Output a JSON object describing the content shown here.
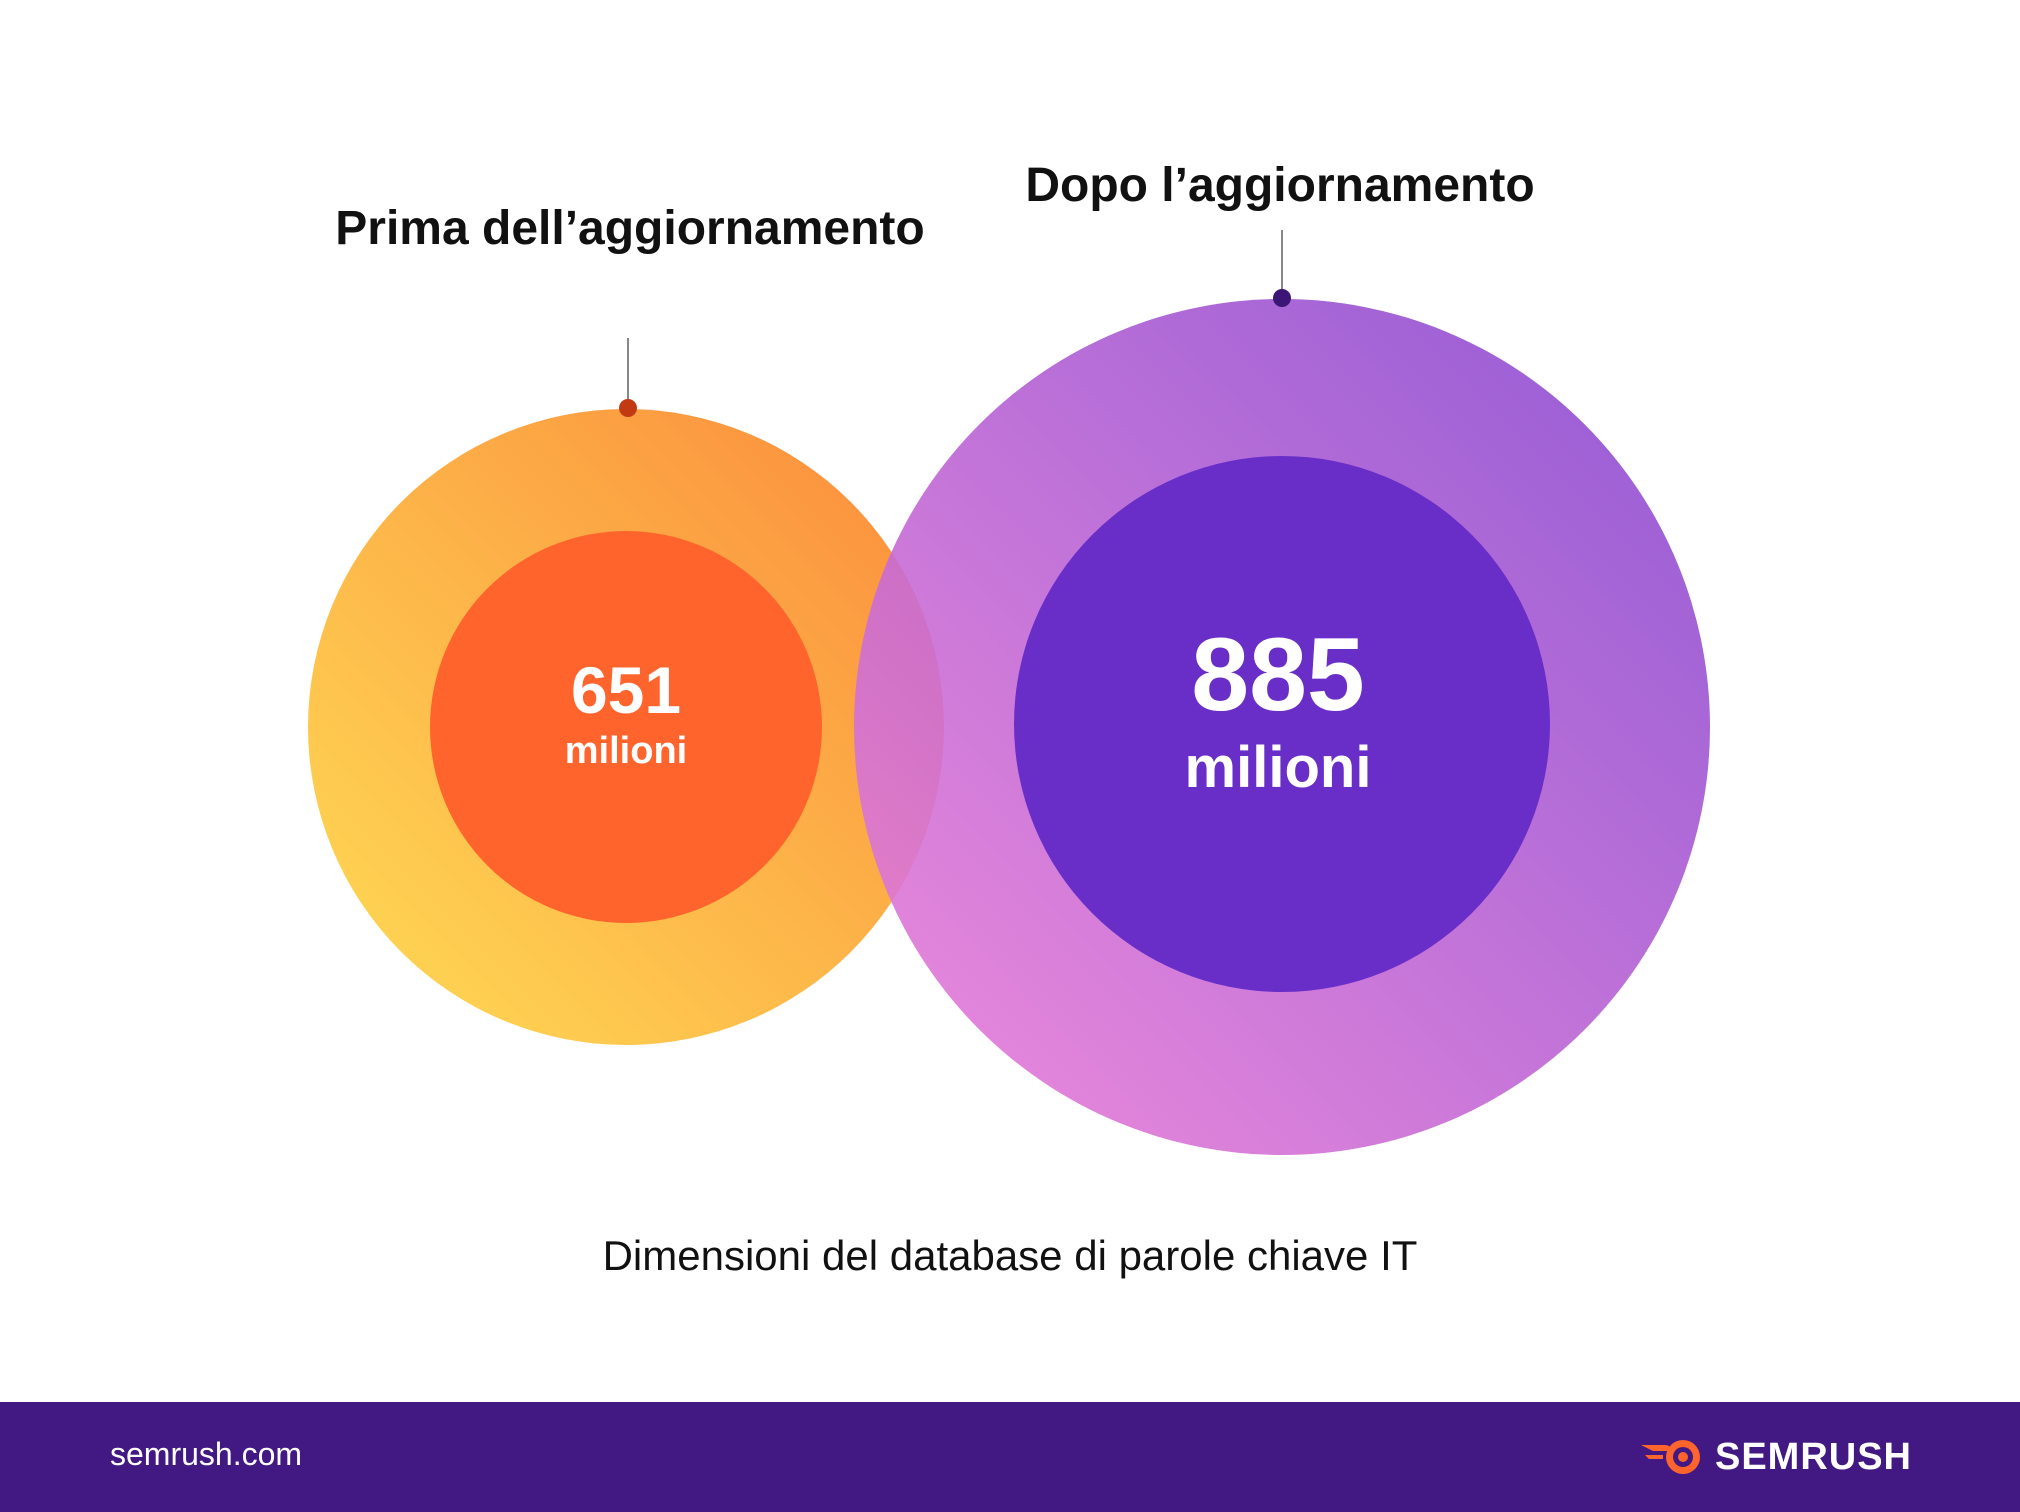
{
  "chart_data": {
    "type": "bubble",
    "caption": "Dimensioni del database di parole chiave IT",
    "series": [
      {
        "label": "Prima dell’aggiornamento",
        "value": 651,
        "value_text": "651",
        "unit": "milioni"
      },
      {
        "label": "Dopo l’aggiornamento",
        "value": 885,
        "value_text": "885",
        "unit": "milioni"
      }
    ],
    "colors": {
      "before_outer": [
        "#ffdd55",
        "#fb8a3c"
      ],
      "before_inner": "#ff642d",
      "after_outer": [
        "#ee7fd8",
        "#8548d0"
      ],
      "after_inner": "#6a2ec8",
      "marker_before": "#c23a11",
      "marker_after": "#3c1676"
    }
  },
  "footer": {
    "url": "semrush.com",
    "brand": "SEMRUSH",
    "background": "#421983",
    "brand_icon": "semrush-flame-icon"
  }
}
